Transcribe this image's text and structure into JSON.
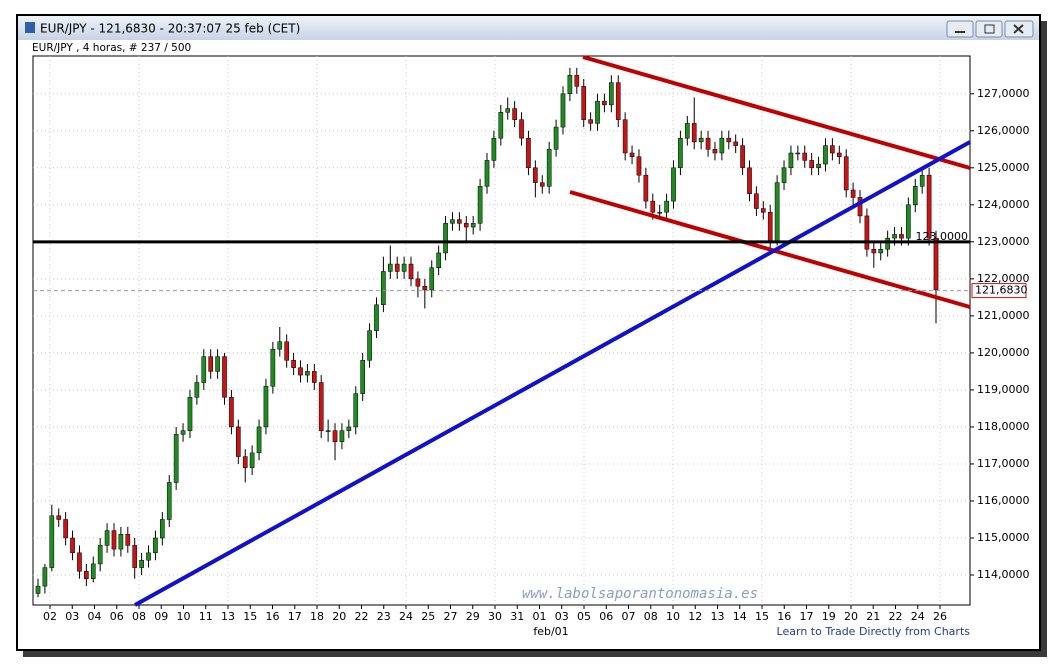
{
  "chart_data": {
    "type": "candlestick",
    "title": "EUR/JPY - 121,6830 - 20:37:07  25 feb (CET)",
    "subtitle": "EUR/JPY , 4 horas, # 237 / 500",
    "watermark": "www.labolsaporantonomasia.es",
    "footer": "Learn to Trade Directly from Charts",
    "x_axis_label": "feb/01",
    "categories": [
      "02",
      "03",
      "04",
      "06",
      "08",
      "09",
      "10",
      "11",
      "13",
      "15",
      "16",
      "17",
      "18",
      "20",
      "22",
      "23",
      "24",
      "25",
      "27",
      "29",
      "30",
      "31",
      "01",
      "03",
      "05",
      "06",
      "07",
      "08",
      "10",
      "12",
      "13",
      "14",
      "15",
      "16",
      "17",
      "19",
      "20",
      "21",
      "22",
      "24",
      "26"
    ],
    "up_color": "#1e8c1e",
    "down_color": "#c81414",
    "ylim": [
      113.19,
      128.02
    ],
    "yticks": [
      {
        "value": 114,
        "label": "114,0000"
      },
      {
        "value": 115,
        "label": "115,0000"
      },
      {
        "value": 116,
        "label": "116,0000"
      },
      {
        "value": 117,
        "label": "117,0000"
      },
      {
        "value": 118,
        "label": "118,0000"
      },
      {
        "value": 119,
        "label": "119,0000"
      },
      {
        "value": 120,
        "label": "120,0000"
      },
      {
        "value": 121,
        "label": "121,0000"
      },
      {
        "value": 122,
        "label": "122,0000"
      },
      {
        "value": 123,
        "label": "123,0000"
      },
      {
        "value": 124,
        "label": "124,0000"
      },
      {
        "value": 125,
        "label": "125,0000"
      },
      {
        "value": 126,
        "label": "126,0000"
      },
      {
        "value": 127,
        "label": "127,0000"
      }
    ],
    "grid": true,
    "level": {
      "value": 123,
      "label": "123,0000",
      "color": "#000000"
    },
    "current_price": {
      "value": 121.683,
      "label": "121,6830",
      "color": "#c81414"
    },
    "ohlc": [
      [
        113.5,
        113.9,
        113.4,
        113.7
      ],
      [
        113.7,
        114.3,
        113.5,
        114.2
      ],
      [
        114.2,
        115.9,
        114.1,
        115.6
      ],
      [
        115.6,
        115.8,
        115.3,
        115.5
      ],
      [
        115.5,
        115.7,
        114.8,
        115.0
      ],
      [
        115.0,
        115.2,
        114.4,
        114.6
      ],
      [
        114.6,
        114.8,
        113.9,
        114.1
      ],
      [
        114.1,
        114.3,
        113.7,
        113.9
      ],
      [
        113.9,
        114.5,
        113.8,
        114.3
      ],
      [
        114.3,
        115.0,
        114.1,
        114.8
      ],
      [
        114.8,
        115.4,
        114.6,
        115.2
      ],
      [
        115.2,
        115.4,
        114.5,
        114.7
      ],
      [
        114.7,
        115.3,
        114.5,
        115.1
      ],
      [
        115.1,
        115.3,
        114.6,
        114.8
      ],
      [
        114.8,
        115.0,
        113.9,
        114.2
      ],
      [
        114.2,
        114.6,
        114.0,
        114.4
      ],
      [
        114.4,
        114.8,
        114.2,
        114.6
      ],
      [
        114.6,
        115.2,
        114.4,
        115.0
      ],
      [
        115.0,
        115.7,
        114.8,
        115.5
      ],
      [
        115.5,
        116.7,
        115.3,
        116.5
      ],
      [
        116.5,
        118.0,
        116.3,
        117.8
      ],
      [
        117.8,
        118.1,
        117.6,
        117.9
      ],
      [
        117.9,
        119.0,
        117.7,
        118.8
      ],
      [
        118.8,
        119.4,
        118.6,
        119.2
      ],
      [
        119.2,
        120.1,
        119.0,
        119.9
      ],
      [
        119.9,
        120.1,
        119.3,
        119.5
      ],
      [
        119.5,
        120.1,
        119.3,
        119.9
      ],
      [
        119.9,
        120.0,
        118.6,
        118.8
      ],
      [
        118.8,
        119.0,
        117.8,
        118.0
      ],
      [
        118.0,
        118.2,
        117.0,
        117.2
      ],
      [
        117.2,
        117.4,
        116.5,
        116.9
      ],
      [
        116.9,
        117.5,
        116.7,
        117.3
      ],
      [
        117.3,
        118.2,
        117.1,
        118.0
      ],
      [
        118.0,
        119.3,
        117.8,
        119.1
      ],
      [
        119.1,
        120.3,
        118.9,
        120.1
      ],
      [
        120.1,
        120.7,
        119.9,
        120.3
      ],
      [
        120.3,
        120.5,
        119.6,
        119.8
      ],
      [
        119.8,
        120.0,
        119.4,
        119.6
      ],
      [
        119.6,
        119.8,
        119.2,
        119.4
      ],
      [
        119.4,
        119.7,
        119.2,
        119.5
      ],
      [
        119.5,
        119.7,
        119.0,
        119.2
      ],
      [
        119.2,
        119.4,
        117.7,
        117.9
      ],
      [
        117.9,
        118.2,
        117.6,
        117.9
      ],
      [
        117.9,
        118.1,
        117.1,
        117.6
      ],
      [
        117.6,
        118.1,
        117.4,
        117.9
      ],
      [
        117.9,
        118.2,
        117.7,
        118.0
      ],
      [
        118.0,
        119.1,
        117.8,
        118.9
      ],
      [
        118.9,
        120.0,
        118.7,
        119.8
      ],
      [
        119.8,
        120.8,
        119.6,
        120.6
      ],
      [
        120.6,
        121.5,
        120.4,
        121.3
      ],
      [
        121.3,
        122.6,
        121.1,
        122.2
      ],
      [
        122.2,
        122.9,
        122.0,
        122.4
      ],
      [
        122.4,
        122.6,
        122.0,
        122.2
      ],
      [
        122.2,
        122.6,
        122.0,
        122.4
      ],
      [
        122.4,
        122.6,
        121.8,
        122.0
      ],
      [
        122.0,
        122.2,
        121.5,
        121.8
      ],
      [
        121.8,
        122.0,
        121.2,
        121.7
      ],
      [
        121.7,
        122.5,
        121.5,
        122.3
      ],
      [
        122.3,
        122.9,
        122.1,
        122.7
      ],
      [
        122.7,
        123.7,
        122.5,
        123.5
      ],
      [
        123.5,
        123.8,
        123.3,
        123.6
      ],
      [
        123.6,
        123.8,
        123.3,
        123.5
      ],
      [
        123.5,
        123.7,
        123.0,
        123.4
      ],
      [
        123.4,
        123.7,
        123.2,
        123.5
      ],
      [
        123.5,
        124.7,
        123.3,
        124.5
      ],
      [
        124.5,
        125.4,
        124.3,
        125.2
      ],
      [
        125.2,
        126.0,
        125.0,
        125.8
      ],
      [
        125.8,
        126.7,
        125.6,
        126.5
      ],
      [
        126.5,
        126.9,
        126.3,
        126.6
      ],
      [
        126.6,
        126.8,
        126.1,
        126.3
      ],
      [
        126.3,
        126.5,
        125.6,
        125.8
      ],
      [
        125.8,
        126.0,
        124.8,
        125.0
      ],
      [
        125.0,
        125.2,
        124.2,
        124.6
      ],
      [
        124.6,
        124.8,
        124.3,
        124.5
      ],
      [
        124.5,
        125.7,
        124.3,
        125.5
      ],
      [
        125.5,
        126.3,
        125.3,
        126.1
      ],
      [
        126.1,
        127.2,
        125.9,
        127.0
      ],
      [
        127.0,
        127.7,
        126.8,
        127.5
      ],
      [
        127.5,
        127.7,
        127.0,
        127.2
      ],
      [
        127.2,
        127.4,
        126.1,
        126.3
      ],
      [
        126.3,
        126.5,
        126.0,
        126.2
      ],
      [
        126.2,
        127.0,
        126.0,
        126.8
      ],
      [
        126.8,
        127.0,
        126.5,
        126.7
      ],
      [
        126.7,
        127.5,
        126.5,
        127.3
      ],
      [
        127.3,
        127.5,
        126.1,
        126.3
      ],
      [
        126.3,
        126.5,
        125.2,
        125.4
      ],
      [
        125.4,
        125.6,
        125.1,
        125.3
      ],
      [
        125.3,
        125.5,
        124.6,
        124.8
      ],
      [
        124.8,
        125.0,
        123.9,
        124.1
      ],
      [
        124.1,
        124.3,
        123.6,
        123.8
      ],
      [
        123.8,
        124.0,
        123.6,
        123.8
      ],
      [
        123.8,
        124.3,
        123.6,
        124.1
      ],
      [
        124.1,
        125.2,
        123.9,
        125.0
      ],
      [
        125.0,
        126.0,
        124.8,
        125.8
      ],
      [
        125.8,
        126.4,
        125.6,
        126.2
      ],
      [
        126.2,
        126.9,
        125.5,
        125.7
      ],
      [
        125.7,
        126.0,
        125.5,
        125.8
      ],
      [
        125.8,
        126.0,
        125.3,
        125.5
      ],
      [
        125.5,
        125.7,
        125.2,
        125.4
      ],
      [
        125.4,
        126.0,
        125.2,
        125.8
      ],
      [
        125.8,
        126.0,
        125.5,
        125.7
      ],
      [
        125.7,
        125.9,
        125.4,
        125.6
      ],
      [
        125.6,
        125.8,
        124.8,
        125.0
      ],
      [
        125.0,
        125.2,
        124.1,
        124.3
      ],
      [
        124.3,
        124.5,
        123.7,
        123.9
      ],
      [
        123.9,
        124.1,
        123.6,
        123.8
      ],
      [
        123.8,
        124.0,
        122.8,
        123.0
      ],
      [
        123.0,
        124.8,
        122.9,
        124.6
      ],
      [
        124.6,
        125.2,
        124.4,
        125.0
      ],
      [
        125.0,
        125.6,
        124.8,
        125.4
      ],
      [
        125.4,
        125.6,
        125.2,
        125.4
      ],
      [
        125.4,
        125.6,
        125.0,
        125.2
      ],
      [
        125.2,
        125.4,
        124.8,
        125.0
      ],
      [
        125.0,
        125.3,
        124.8,
        125.1
      ],
      [
        125.1,
        125.8,
        124.9,
        125.6
      ],
      [
        125.6,
        125.8,
        125.2,
        125.4
      ],
      [
        125.4,
        125.6,
        125.1,
        125.3
      ],
      [
        125.3,
        125.5,
        124.2,
        124.4
      ],
      [
        124.4,
        124.6,
        124.0,
        124.2
      ],
      [
        124.2,
        124.4,
        123.5,
        123.7
      ],
      [
        123.7,
        123.9,
        122.6,
        122.8
      ],
      [
        122.8,
        123.0,
        122.3,
        122.7
      ],
      [
        122.7,
        123.0,
        122.5,
        122.8
      ],
      [
        122.8,
        123.3,
        122.6,
        123.1
      ],
      [
        123.1,
        123.4,
        122.9,
        123.2
      ],
      [
        123.2,
        123.4,
        122.9,
        123.1
      ],
      [
        123.1,
        124.2,
        122.9,
        124.0
      ],
      [
        124.0,
        124.7,
        123.8,
        124.5
      ],
      [
        124.5,
        125.0,
        124.3,
        124.8
      ],
      [
        124.8,
        125.0,
        122.9,
        123.1
      ],
      [
        123.1,
        123.3,
        120.8,
        121.7
      ]
    ]
  }
}
